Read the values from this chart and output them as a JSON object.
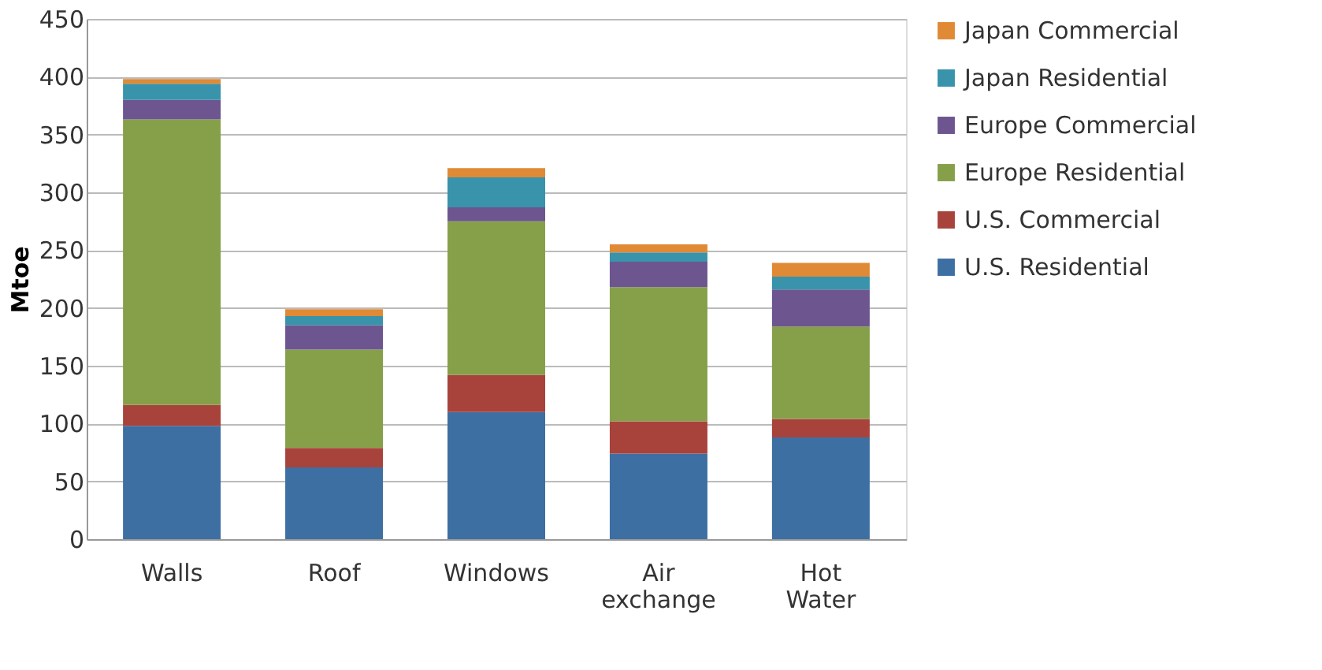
{
  "chart_data": {
    "type": "bar",
    "stacked": true,
    "ylabel": "Mtoe",
    "categories": [
      "Walls",
      "Roof",
      "Windows",
      "Air exchange",
      "Hot Water"
    ],
    "series": [
      {
        "name": "U.S. Residential",
        "color": "#3d6fa3",
        "values": [
          98,
          62,
          110,
          74,
          88
        ]
      },
      {
        "name": "U.S. Commercial",
        "color": "#a8433c",
        "values": [
          18,
          17,
          32,
          28,
          16
        ]
      },
      {
        "name": "Europe Residential",
        "color": "#86a04a",
        "values": [
          247,
          85,
          133,
          116,
          80
        ]
      },
      {
        "name": "Europe Commercial",
        "color": "#6d5690",
        "values": [
          17,
          21,
          12,
          22,
          32
        ]
      },
      {
        "name": "Japan Residential",
        "color": "#3893ab",
        "values": [
          14,
          8,
          26,
          8,
          11
        ]
      },
      {
        "name": "Japan Commercial",
        "color": "#e08a35",
        "values": [
          4,
          6,
          8,
          7,
          12
        ]
      }
    ],
    "ylim": [
      0,
      450
    ],
    "yticks": [
      0,
      50,
      100,
      150,
      200,
      250,
      300,
      350,
      400,
      450
    ],
    "grid": "y",
    "legend": "right"
  }
}
